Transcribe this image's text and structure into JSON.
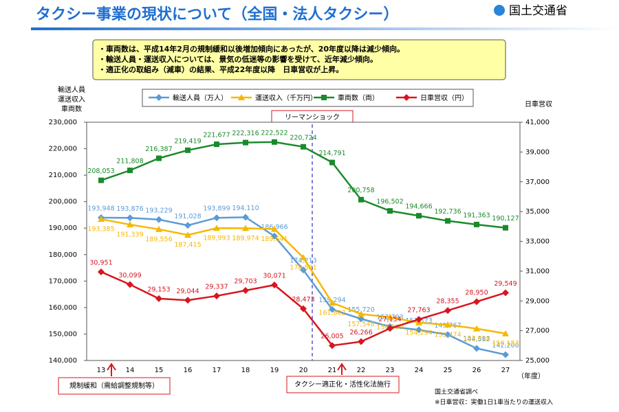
{
  "header": {
    "title": "タクシー事業の現状について（全国・法人タクシー）",
    "logo": "国土交通省"
  },
  "notes": [
    "・車両数は、平成14年2月の規制緩和以後増加傾向にあったが、20年度以降は減少傾向。",
    "・輸送人員・運送収入については、景気の低迷等の影響を受けて、近年減少傾向。",
    "・適正化の取組み（減車）の結果、平成22年度以降　日車営収が上昇。"
  ],
  "chart_data": {
    "type": "line",
    "y_label": [
      "輸送人員",
      "運送収入",
      "車両数"
    ],
    "y2_label": "日車営収",
    "x_label": "（年度）",
    "categories": [
      "13",
      "14",
      "15",
      "16",
      "17",
      "18",
      "19",
      "20",
      "21",
      "22",
      "23",
      "24",
      "25",
      "26",
      "27"
    ],
    "ylim": [
      140000,
      230000
    ],
    "yticks": [
      {
        "value": 140000,
        "label": "140,000"
      },
      {
        "value": 150000,
        "label": "150,000"
      },
      {
        "value": 160000,
        "label": "160,000"
      },
      {
        "value": 170000,
        "label": "170,000"
      },
      {
        "value": 180000,
        "label": "180,000"
      },
      {
        "value": 190000,
        "label": "190,000"
      },
      {
        "value": 200000,
        "label": "200,000"
      },
      {
        "value": 210000,
        "label": "210,000"
      },
      {
        "value": 220000,
        "label": "220,000"
      },
      {
        "value": 230000,
        "label": "230,000"
      }
    ],
    "y2lim": [
      25000,
      41000
    ],
    "y2ticks": [
      {
        "value": 25000,
        "label": "25,000"
      },
      {
        "value": 27000,
        "label": "27,000"
      },
      {
        "value": 29000,
        "label": "29,000"
      },
      {
        "value": 31000,
        "label": "31,000"
      },
      {
        "value": 33000,
        "label": "33,000"
      },
      {
        "value": 35000,
        "label": "35,000"
      },
      {
        "value": 37000,
        "label": "37,000"
      },
      {
        "value": 39000,
        "label": "39,000"
      },
      {
        "value": 41000,
        "label": "41,000"
      }
    ],
    "series": [
      {
        "name": "輸送人員（万人）",
        "color": "#5b9bd5",
        "marker": "diamond",
        "values": [
          193948,
          193876,
          193229,
          191028,
          193899,
          194110,
          186966,
          174213,
          159294,
          155720,
          152793,
          151573,
          149767,
          144582,
          142200
        ],
        "value_labels": [
          "193,948",
          "193,876",
          "193,229",
          "191,028",
          "193,899",
          "194,110",
          "186,966",
          "174,213",
          "159,294",
          "155,720",
          "152,793",
          "151,573",
          "149,767",
          "144,582",
          "142,200"
        ]
      },
      {
        "name": "運送収入（千万円）",
        "color": "#f5b800",
        "marker": "triangle",
        "values": [
          193385,
          191339,
          189556,
          187415,
          189993,
          189974,
          189641,
          178881,
          161802,
          157548,
          156359,
          154294,
          153474,
          152018,
          150183
        ],
        "value_labels": [
          "193,385",
          "191,339",
          "189,556",
          "187,415",
          "189,993",
          "189,974",
          "189,641",
          "178,881",
          "161,802",
          "157,548",
          "156,359",
          "154,294",
          "153,474",
          "152,018",
          "150,183"
        ]
      },
      {
        "name": "車両数（両）",
        "color": "#1a8a2a",
        "marker": "square",
        "values": [
          208053,
          211808,
          216387,
          219419,
          221677,
          222316,
          222522,
          220724,
          214791,
          200758,
          196502,
          194666,
          192736,
          191363,
          190127
        ],
        "value_labels": [
          "208,053",
          "211,808",
          "216,387",
          "219,419",
          "221,677",
          "222,316",
          "222,522",
          "220,724",
          "214,791",
          "200,758",
          "196,502",
          "194,666",
          "192,736",
          "191,363",
          "190,127"
        ]
      },
      {
        "name": "日車営収（円）",
        "color": "#d7161e",
        "marker": "diamond",
        "axis": "y2",
        "values": [
          30951,
          30099,
          29153,
          29044,
          29337,
          29703,
          30071,
          28473,
          26005,
          26266,
          27154,
          27763,
          28355,
          28950,
          29549
        ],
        "value_labels": [
          "30,951",
          "30,099",
          "29,153",
          "29,044",
          "29,337",
          "29,703",
          "30,071",
          "28,473",
          "26,005",
          "26,266",
          "27,154",
          "27,763",
          "28,355",
          "28,950",
          "29,549"
        ]
      }
    ],
    "annotations": [
      "リーマンショック",
      "規制緩和（需給調整規制等）",
      "タクシー適正化・活性化法施行"
    ],
    "source": [
      "国土交通省調べ",
      "※日車営収：実働1日1車当たりの運送収入"
    ]
  }
}
